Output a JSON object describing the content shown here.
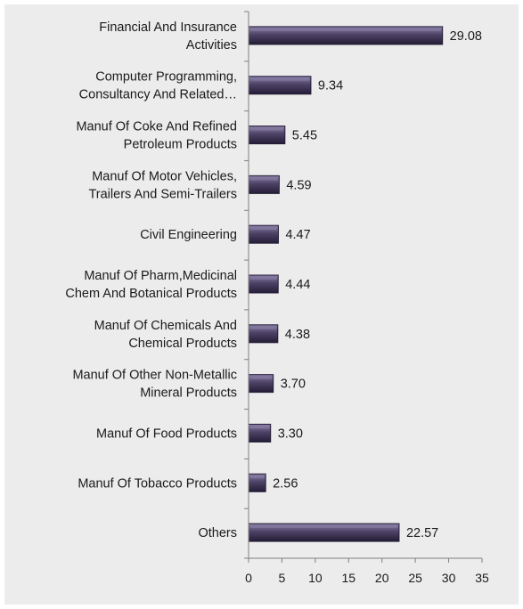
{
  "colors": {
    "background": "#ececec",
    "bar_fill": "#4d4266",
    "bar_highlight": "#8a7fa6",
    "bar_shadow": "#241d36",
    "axis": "#7f7f7f"
  },
  "chart_data": {
    "type": "bar",
    "orientation": "horizontal",
    "categories": [
      [
        "Financial And Insurance",
        "Activities"
      ],
      [
        "Computer Programming,",
        "Consultancy And Related…"
      ],
      [
        "Manuf Of Coke And Refined",
        "Petroleum Products"
      ],
      [
        "Manuf Of Motor Vehicles,",
        "Trailers And Semi-Trailers"
      ],
      [
        "Civil Engineering"
      ],
      [
        "Manuf Of Pharm,Medicinal",
        "Chem And Botanical Products"
      ],
      [
        "Manuf Of Chemicals And",
        "Chemical Products"
      ],
      [
        "Manuf Of Other Non-Metallic",
        "Mineral Products"
      ],
      [
        "Manuf Of Food Products"
      ],
      [
        "Manuf Of Tobacco Products"
      ],
      [
        "Others"
      ]
    ],
    "values": [
      29.08,
      9.34,
      5.45,
      4.59,
      4.47,
      4.44,
      4.38,
      3.7,
      3.3,
      2.56,
      22.57
    ],
    "value_labels": [
      "29.08",
      "9.34",
      "5.45",
      "4.59",
      "4.47",
      "4.44",
      "4.38",
      "3.70",
      "3.30",
      "2.56",
      "22.57"
    ],
    "xlim": [
      0,
      35
    ],
    "xticks": [
      "0",
      "5",
      "10",
      "15",
      "20",
      "25",
      "30",
      "35"
    ],
    "grid": false,
    "legend": "none"
  }
}
